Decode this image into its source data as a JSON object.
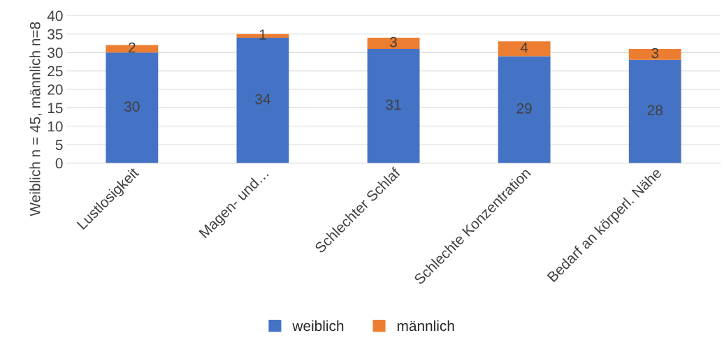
{
  "chart_data": {
    "type": "bar",
    "stacked": true,
    "ylabel": "Weiblich n = 45, männlich n=8",
    "categories": [
      "Lustlosigkeit",
      "Magen- und…",
      "Schlechter Schlaf",
      "Schlechte Konzentration",
      "Bedarf an körperl. Nähe"
    ],
    "series": [
      {
        "name": "weiblich",
        "color": "#4472c4",
        "values": [
          30,
          34,
          31,
          29,
          28
        ]
      },
      {
        "name": "männlich",
        "color": "#ed7d31",
        "values": [
          2,
          1,
          3,
          4,
          3
        ]
      }
    ],
    "ylim": [
      0,
      40
    ],
    "yticks": [
      0,
      5,
      10,
      15,
      20,
      25,
      30,
      35,
      40
    ],
    "grid": "y",
    "legend": "bottom",
    "data_labels": true
  }
}
